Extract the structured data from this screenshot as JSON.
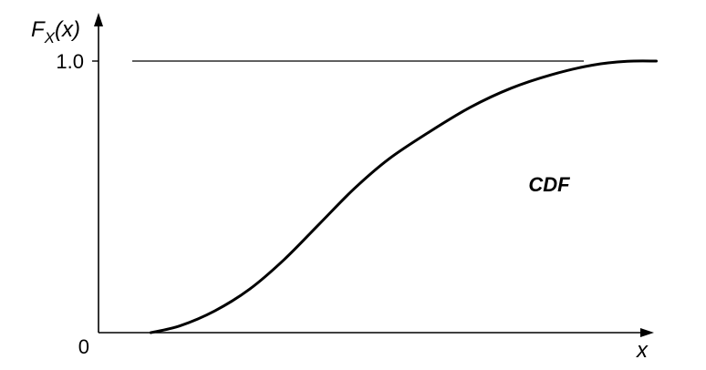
{
  "chart_data": {
    "type": "line",
    "title": "",
    "xlabel": "x",
    "ylabel": {
      "base": "F",
      "subscript": "X",
      "argument": "(x)"
    },
    "ylim": [
      0,
      1.0
    ],
    "xlim": [
      0,
      1
    ],
    "y_ticks": [
      {
        "value": 0,
        "label": "0"
      },
      {
        "value": 1.0,
        "label": "1.0"
      }
    ],
    "reference_lines": [
      {
        "orientation": "horizontal",
        "y": 1.0,
        "style": "dashed"
      }
    ],
    "annotations": [
      {
        "text": "CDF",
        "x": 0.74,
        "y": 0.52
      }
    ],
    "series": [
      {
        "values": [
          {
            "x": 0.09,
            "y": 0.0
          },
          {
            "x": 0.14,
            "y": 0.025
          },
          {
            "x": 0.2,
            "y": 0.08
          },
          {
            "x": 0.26,
            "y": 0.16
          },
          {
            "x": 0.32,
            "y": 0.27
          },
          {
            "x": 0.38,
            "y": 0.4
          },
          {
            "x": 0.44,
            "y": 0.53
          },
          {
            "x": 0.5,
            "y": 0.64
          },
          {
            "x": 0.57,
            "y": 0.74
          },
          {
            "x": 0.64,
            "y": 0.83
          },
          {
            "x": 0.71,
            "y": 0.9
          },
          {
            "x": 0.78,
            "y": 0.95
          },
          {
            "x": 0.85,
            "y": 0.985
          },
          {
            "x": 0.91,
            "y": 0.999
          },
          {
            "x": 0.96,
            "y": 1.0
          }
        ]
      }
    ],
    "colors": {
      "line": "#000000",
      "axis": "#000000"
    }
  }
}
